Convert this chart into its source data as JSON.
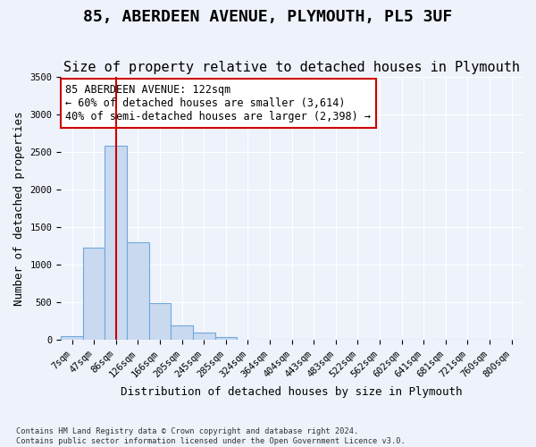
{
  "title": "85, ABERDEEN AVENUE, PLYMOUTH, PL5 3UF",
  "subtitle": "Size of property relative to detached houses in Plymouth",
  "xlabel": "Distribution of detached houses by size in Plymouth",
  "ylabel": "Number of detached properties",
  "footer_line1": "Contains HM Land Registry data © Crown copyright and database right 2024.",
  "footer_line2": "Contains public sector information licensed under the Open Government Licence v3.0.",
  "bin_labels": [
    "7sqm",
    "47sqm",
    "86sqm",
    "126sqm",
    "166sqm",
    "205sqm",
    "245sqm",
    "285sqm",
    "324sqm",
    "364sqm",
    "404sqm",
    "443sqm",
    "483sqm",
    "522sqm",
    "562sqm",
    "602sqm",
    "641sqm",
    "681sqm",
    "721sqm",
    "760sqm",
    "800sqm"
  ],
  "bar_values": [
    50,
    1230,
    2580,
    1300,
    490,
    200,
    95,
    45,
    5,
    0,
    0,
    0,
    0,
    0,
    0,
    0,
    0,
    0,
    0,
    0,
    0
  ],
  "bar_color": "#c9d9f0",
  "bar_edge_color": "#6fa8dc",
  "property_sqm": 122,
  "property_bin_index": 2,
  "annotation_text": "85 ABERDEEN AVENUE: 122sqm\n← 60% of detached houses are smaller (3,614)\n40% of semi-detached houses are larger (2,398) →",
  "annotation_box_color": "#ffffff",
  "annotation_box_edge_color": "#cc0000",
  "vline_color": "#cc0000",
  "ylim": [
    0,
    3500
  ],
  "yticks": [
    0,
    500,
    1000,
    1500,
    2000,
    2500,
    3000,
    3500
  ],
  "background_color": "#eef2fb",
  "plot_bg_color": "#eef2fb",
  "grid_color": "#ffffff",
  "title_fontsize": 13,
  "subtitle_fontsize": 11,
  "axis_label_fontsize": 9,
  "tick_fontsize": 7.5,
  "annotation_fontsize": 8.5
}
